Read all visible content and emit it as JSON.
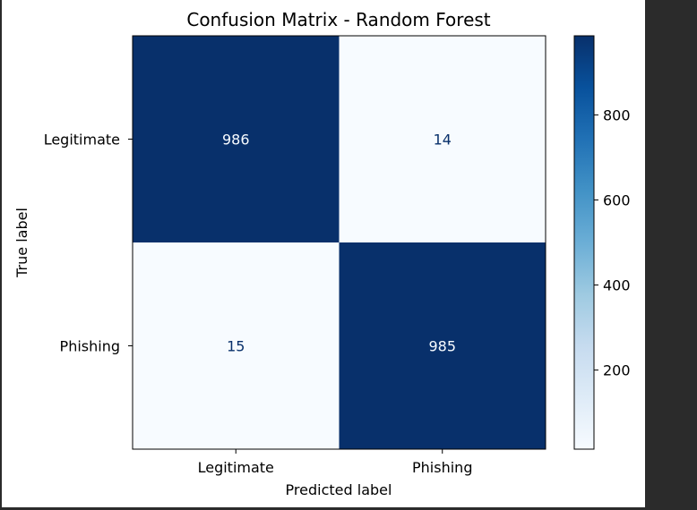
{
  "chart_data": {
    "type": "heatmap",
    "title": "Confusion Matrix - Random Forest",
    "xlabel": "Predicted label",
    "ylabel": "True label",
    "x_categories": [
      "Legitimate",
      "Phishing"
    ],
    "y_categories": [
      "Legitimate",
      "Phishing"
    ],
    "values": [
      [
        986,
        14
      ],
      [
        15,
        985
      ]
    ],
    "colormap": "Blues",
    "colorbar": {
      "min": 14,
      "max": 986,
      "ticks": [
        200,
        400,
        600,
        800
      ]
    },
    "colors": {
      "high": "#08306b",
      "low": "#f7fbff",
      "text_on_dark": "#f7fbff",
      "text_on_light": "#08306b"
    }
  }
}
